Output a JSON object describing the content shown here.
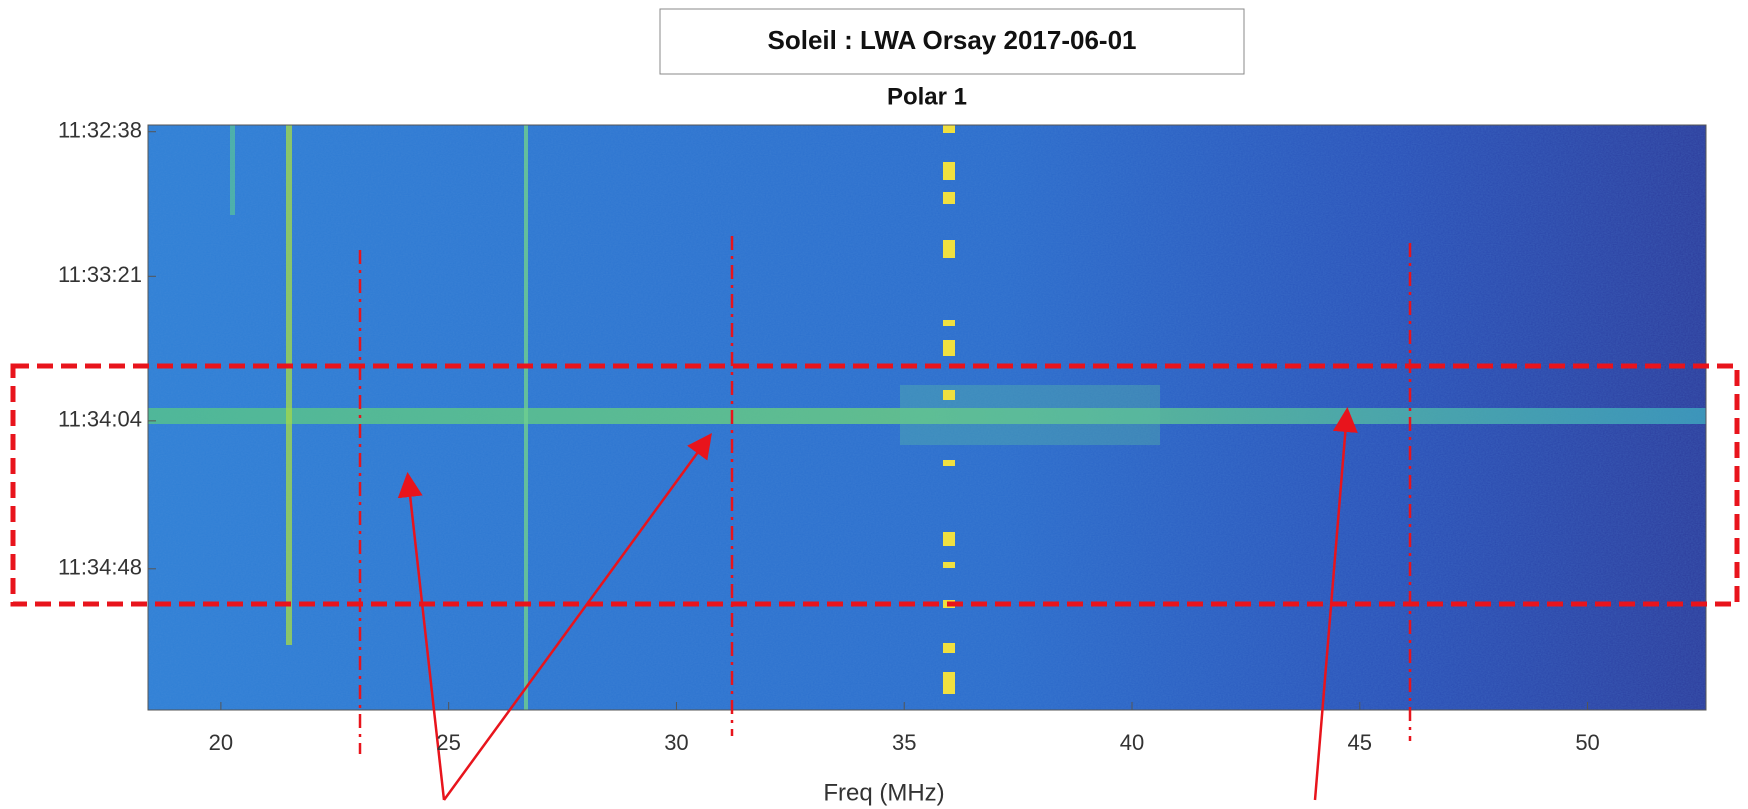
{
  "chart_data": {
    "type": "heatmap",
    "title": "Soleil : LWA Orsay 2017-06-01",
    "subtitle": "Polar 1",
    "x_label": "Freq (MHz)",
    "xlim": [
      18.4,
      52.6
    ],
    "xticks": [
      20,
      25,
      30,
      35,
      40,
      45,
      50
    ],
    "ylim": [
      41556,
      41730
    ],
    "yticks": [
      {
        "value": 41558,
        "label": "11:32:38"
      },
      {
        "value": 41601,
        "label": "11:33:21"
      },
      {
        "value": 41644,
        "label": "11:34:04"
      },
      {
        "value": 41688,
        "label": "11:34:48"
      }
    ]
  }
}
